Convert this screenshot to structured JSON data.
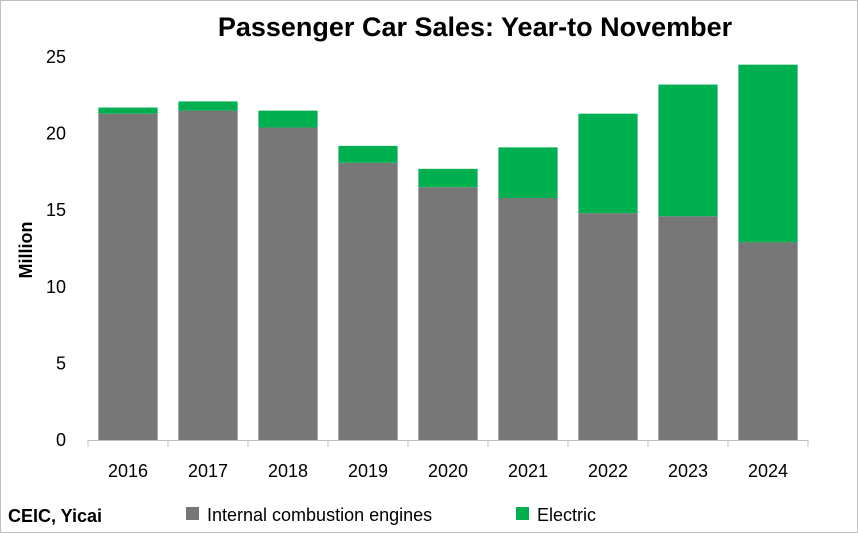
{
  "chart_data": {
    "type": "bar",
    "stacked": true,
    "title": "Passenger Car Sales: Year-to November",
    "ylabel": "Million",
    "xlabel": "",
    "categories": [
      "2016",
      "2017",
      "2018",
      "2019",
      "2020",
      "2021",
      "2022",
      "2023",
      "2024"
    ],
    "series": [
      {
        "name": "Internal combustion engines",
        "color": "#767676",
        "values": [
          21.3,
          21.5,
          20.4,
          18.1,
          16.5,
          15.8,
          14.8,
          14.6,
          12.9
        ]
      },
      {
        "name": "Electric",
        "color": "#00b050",
        "values": [
          0.4,
          0.6,
          1.1,
          1.1,
          1.2,
          3.3,
          6.5,
          8.6,
          11.6
        ]
      }
    ],
    "ylim": [
      0,
      25
    ],
    "yticks": [
      "0",
      "5",
      "10",
      "15",
      "20",
      "25"
    ],
    "grid": false,
    "legend_position": "bottom",
    "source": "CEIC, Yicai"
  }
}
